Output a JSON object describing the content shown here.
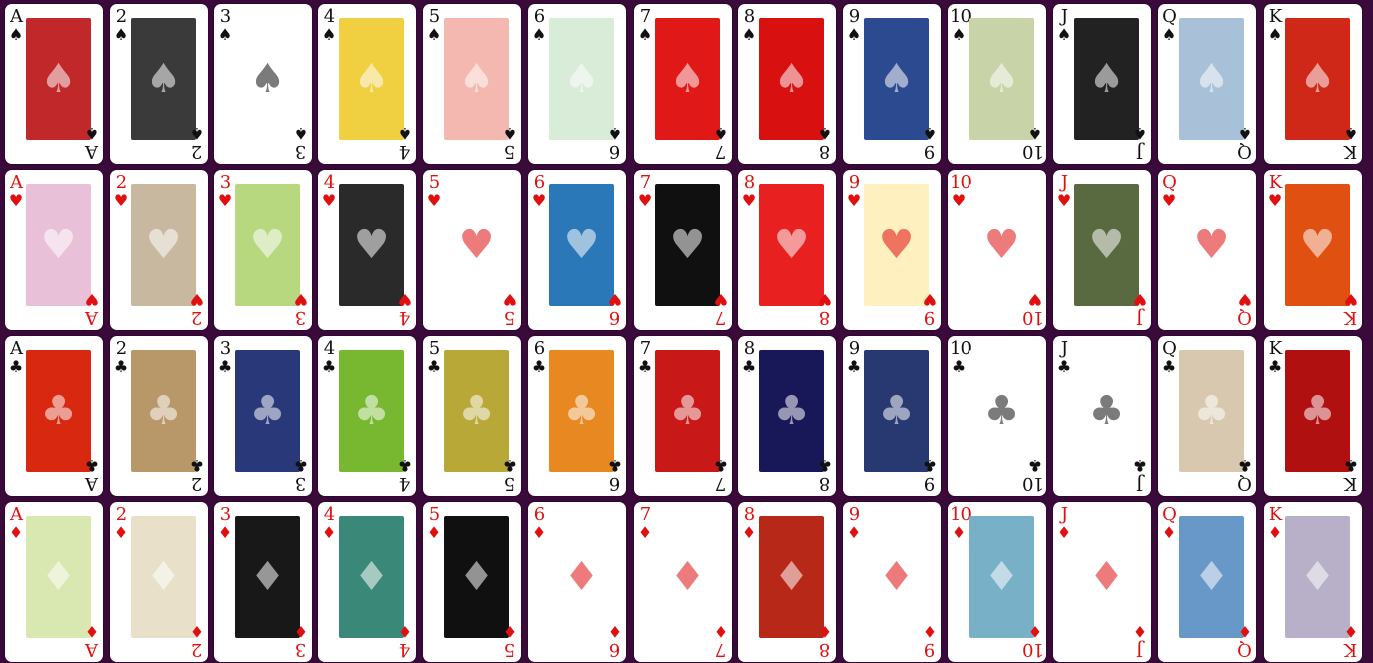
{
  "deck": {
    "rows": [
      {
        "suit_name": "spades",
        "suit_symbol": "♠",
        "color": "black",
        "ranks": [
          "A",
          "2",
          "3",
          "4",
          "5",
          "6",
          "7",
          "8",
          "9",
          "10",
          "J",
          "Q",
          "K"
        ],
        "art_colors": [
          "#c0282a",
          "#3a3a3a",
          "#ffffff",
          "#f0d040",
          "#f4b8b0",
          "#d8ecd8",
          "#e01818",
          "#d81010",
          "#2c4a90",
          "#c8d4a8",
          "#222222",
          "#a8c0d8",
          "#d02818"
        ]
      },
      {
        "suit_name": "hearts",
        "suit_symbol": "♥",
        "color": "red",
        "ranks": [
          "A",
          "2",
          "3",
          "4",
          "5",
          "6",
          "7",
          "8",
          "9",
          "10",
          "J",
          "Q",
          "K"
        ],
        "art_colors": [
          "#e8c0d8",
          "#c8b8a0",
          "#b8d880",
          "#2a2a2a",
          "#ffffff",
          "#2a78b8",
          "#101010",
          "#e82020",
          "#fff0c0",
          "#ffffff",
          "#5a6a40",
          "#ffffff",
          "#e05010"
        ]
      },
      {
        "suit_name": "clubs",
        "suit_symbol": "♣",
        "color": "black",
        "ranks": [
          "A",
          "2",
          "3",
          "4",
          "5",
          "6",
          "7",
          "8",
          "9",
          "10",
          "J",
          "Q",
          "K"
        ],
        "art_colors": [
          "#d82810",
          "#b89868",
          "#283878",
          "#78b830",
          "#b8a838",
          "#e88820",
          "#c81818",
          "#181858",
          "#283870",
          "#ffffff",
          "#ffffff",
          "#d8c8b0",
          "#b01010"
        ]
      },
      {
        "suit_name": "diamonds",
        "suit_symbol": "♦",
        "color": "red",
        "ranks": [
          "A",
          "2",
          "3",
          "4",
          "5",
          "6",
          "7",
          "8",
          "9",
          "10",
          "J",
          "Q",
          "K"
        ],
        "art_colors": [
          "#d8e8b0",
          "#e8e0c8",
          "#181818",
          "#3a8878",
          "#101010",
          "#ffffff",
          "#ffffff",
          "#b82818",
          "#ffffff",
          "#78b0c8",
          "#ffffff",
          "#6898c8",
          "#b8b0c8"
        ]
      }
    ]
  }
}
